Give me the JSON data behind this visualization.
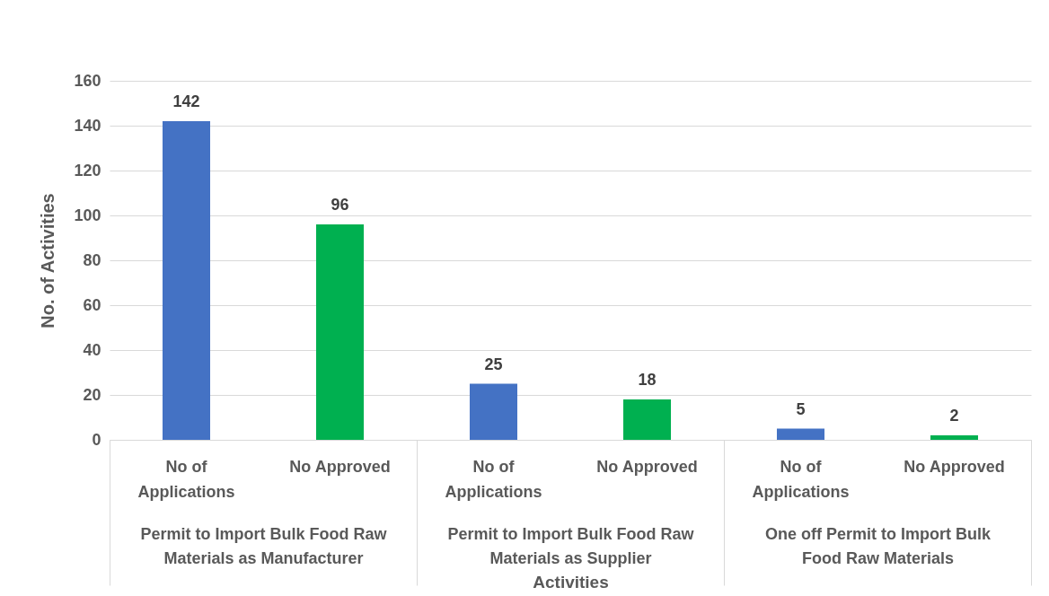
{
  "chart_data": {
    "type": "bar",
    "xlabel": "Activities",
    "ylabel": "No. of Activities",
    "categories": [
      "Permit to Import Bulk Food Raw Materials as Manufacturer",
      "Permit to Import Bulk Food Raw Materials as Supplier",
      "One off Permit to Import Bulk Food Raw Materials"
    ],
    "series": [
      {
        "name": "No of Applications",
        "color": "#4472c4",
        "values": [
          142,
          25,
          5
        ]
      },
      {
        "name": "No Approved",
        "color": "#00b050",
        "values": [
          96,
          18,
          2
        ]
      }
    ],
    "ylim": [
      0,
      160
    ],
    "yticks": [
      0,
      20,
      40,
      60,
      80,
      100,
      120,
      140,
      160
    ],
    "grid": "y",
    "data_labels": true
  }
}
